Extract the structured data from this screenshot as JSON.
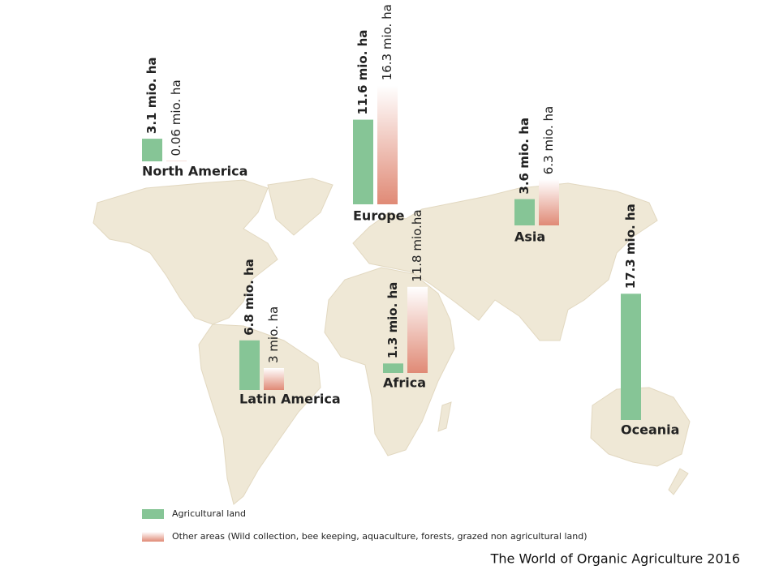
{
  "chart_data": {
    "type": "bar",
    "title": "The World of Organic Agriculture 2016",
    "categories": [
      "North America",
      "Europe",
      "Asia",
      "Latin America",
      "Africa",
      "Oceania"
    ],
    "series": [
      {
        "name": "Agricultural land",
        "color": "#86c596",
        "values": [
          3.1,
          11.6,
          3.6,
          6.8,
          1.3,
          17.3
        ],
        "value_labels": [
          "3.1 mio. ha",
          "11.6 mio. ha",
          "3.6 mio. ha",
          "6.8 mio. ha",
          "1.3 mio. ha",
          "17.3 mio. ha"
        ]
      },
      {
        "name": "Other areas (Wild collection, bee keeping, aquaculture, forests, grazed non agricultural land)",
        "color": "#e08a76",
        "values": [
          0.06,
          16.3,
          6.3,
          3,
          11.8,
          null
        ],
        "value_labels": [
          "0.06 mio. ha",
          "16.3 mio. ha",
          "6.3 mio. ha",
          "3 mio. ha",
          "11.8 mio.ha",
          null
        ]
      }
    ]
  }
}
